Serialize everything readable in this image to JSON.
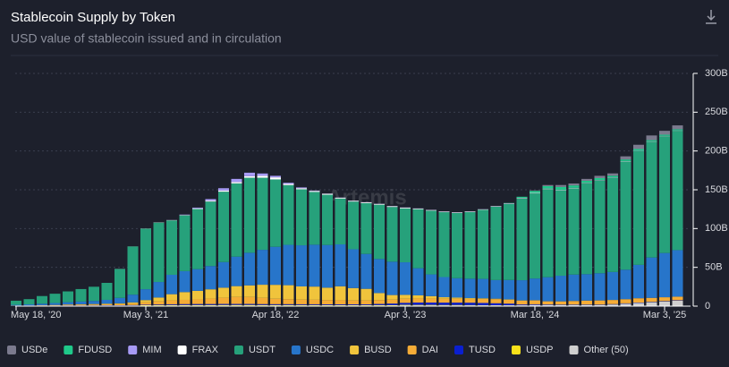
{
  "chart_data": {
    "type": "stacked-bar",
    "title": "Stablecoin Supply by Token",
    "subtitle": "USD value of stablecoin issued and in circulation",
    "watermark": "Artemis",
    "categories": [
      "May 18, '20",
      null,
      null,
      null,
      null,
      null,
      null,
      null,
      null,
      null,
      "May 3, '21",
      null,
      null,
      null,
      null,
      null,
      null,
      null,
      null,
      null,
      "Apr 18, '22",
      null,
      null,
      null,
      null,
      null,
      null,
      null,
      null,
      null,
      "Apr 3, '23",
      null,
      null,
      null,
      null,
      null,
      null,
      null,
      null,
      null,
      "Mar 18, '24",
      null,
      null,
      null,
      null,
      null,
      null,
      null,
      null,
      null,
      "Mar 3, '25",
      null
    ],
    "ylim": [
      0,
      300
    ],
    "yticks": [
      0,
      {
        "value": 50,
        "label": "50B"
      },
      {
        "value": 100,
        "label": "100B"
      },
      {
        "value": 150,
        "label": "150B"
      },
      {
        "value": 200,
        "label": "200B"
      },
      {
        "value": 250,
        "label": "250B"
      },
      {
        "value": 300,
        "label": "300B"
      }
    ],
    "grid": true,
    "legend": "bottom",
    "series": [
      {
        "name": "USDe",
        "color": "#7b7a8e",
        "values": [
          0,
          0,
          0,
          0,
          0,
          0,
          0,
          0,
          0,
          0,
          0,
          0,
          0,
          0,
          0,
          0,
          0,
          0,
          0,
          0,
          0,
          0,
          0,
          0,
          0,
          0,
          0,
          0,
          0,
          0,
          0,
          0,
          0,
          0,
          0,
          0,
          0,
          0,
          0,
          0,
          0.5,
          1.5,
          2.5,
          2.5,
          2.5,
          3,
          3,
          4,
          5.5,
          6,
          5,
          5
        ]
      },
      {
        "name": "FDUSD",
        "color": "#1fc98a",
        "values": [
          0,
          0,
          0,
          0,
          0,
          0,
          0,
          0,
          0,
          0,
          0,
          0,
          0,
          0,
          0,
          0,
          0,
          0,
          0,
          0,
          0,
          0,
          0,
          0,
          0,
          0,
          0,
          0,
          0,
          0,
          0,
          0,
          0,
          0,
          0,
          0,
          0,
          0,
          0.3,
          1.5,
          2.5,
          3,
          3.5,
          3,
          2.5,
          2.5,
          2,
          2,
          1.8,
          1.5,
          1.5,
          1.5
        ]
      },
      {
        "name": "MIM",
        "color": "#a79af5",
        "values": [
          0,
          0,
          0,
          0,
          0,
          0,
          0,
          0,
          0,
          0,
          0,
          0,
          0.1,
          0.5,
          1,
          2,
          3,
          4,
          4.5,
          3,
          2,
          1.5,
          1,
          0.5,
          0.2,
          0.2,
          0.2,
          0.2,
          0.2,
          0.2,
          0.2,
          0.2,
          0.2,
          0.2,
          0.2,
          0.2,
          0.2,
          0.2,
          0.2,
          0.2,
          0.2,
          0.2,
          0.2,
          0.2,
          0.2,
          0.2,
          0.2,
          0.2,
          0.2,
          0.2,
          0.2,
          0.2
        ]
      },
      {
        "name": "FRAX",
        "color": "#ffffff",
        "values": [
          0,
          0,
          0,
          0,
          0,
          0,
          0,
          0,
          0.1,
          0.1,
          0.2,
          0.3,
          0.4,
          0.5,
          0.8,
          1.2,
          1.5,
          1.8,
          2,
          2.5,
          2.7,
          1.5,
          1.4,
          1.3,
          1.2,
          1.1,
          1,
          1,
          1,
          1,
          1,
          0.8,
          0.8,
          0.7,
          0.7,
          0.7,
          0.6,
          0.6,
          0.6,
          0.6,
          0.6,
          0.6,
          0.5,
          0.5,
          0.4,
          0.4,
          0.4,
          0.4,
          0.3,
          0.3,
          0.3,
          0.3
        ]
      },
      {
        "name": "USDT",
        "color": "#26a17b",
        "values": [
          5.3,
          6.7,
          9.8,
          12,
          13.9,
          16.1,
          18.3,
          21.9,
          37.3,
          62.1,
          78,
          76.6,
          70.1,
          71.9,
          77.5,
          83.1,
          90.7,
          94.4,
          96.7,
          92.9,
          86.8,
          77,
          72.2,
          68,
          64.8,
          59.1,
          61.5,
          65.5,
          70,
          70.5,
          69.5,
          76.1,
          82.2,
          83.6,
          84.1,
          85.8,
          89.1,
          94.6,
          98.2,
          105.3,
          109.7,
          113.5,
          110.2,
          111.2,
          117.2,
          119.5,
          121.5,
          139.5,
          147,
          149.3,
          150.5,
          153.8
        ]
      },
      {
        "name": "USDC",
        "color": "#2775ca",
        "values": [
          1,
          1.5,
          2,
          2.5,
          3,
          3.5,
          4,
          5,
          7,
          10,
          14,
          20,
          25,
          27,
          28,
          30,
          33,
          38,
          42,
          45,
          49,
          52,
          53,
          54,
          55,
          54,
          50,
          45,
          44,
          43,
          42,
          35,
          28,
          26,
          25,
          25,
          25,
          24,
          25,
          26,
          28,
          31,
          33,
          34,
          34,
          35,
          36,
          38,
          43,
          52,
          57,
          60
        ]
      },
      {
        "name": "BUSD",
        "color": "#f0c43c",
        "values": [
          0.1,
          0.1,
          0.2,
          0.3,
          0.4,
          0.5,
          0.6,
          0.8,
          1,
          1.5,
          3,
          5,
          8,
          10,
          11,
          12,
          13,
          14,
          15,
          17,
          18,
          18,
          17,
          17,
          16,
          18,
          16,
          15,
          9,
          6,
          5,
          4,
          3,
          2,
          1.5,
          1,
          0.8,
          0.6,
          0.5,
          0.3,
          0.2,
          0.1,
          0.1,
          0.1,
          0.1,
          0.1,
          0.1,
          0.1,
          0.1,
          0.1,
          0.1,
          0.1
        ]
      },
      {
        "name": "DAI",
        "color": "#f5ac37",
        "values": [
          0.1,
          0.2,
          0.3,
          0.5,
          0.8,
          1,
          1.1,
          1.2,
          1.5,
          2,
          3,
          4,
          5,
          5.5,
          6,
          7,
          8,
          9,
          9,
          8,
          7,
          6.5,
          6,
          5.8,
          5.5,
          5.3,
          5,
          5,
          5,
          5,
          5.3,
          5.3,
          5.3,
          5,
          5,
          5,
          5.2,
          5.3,
          5,
          5,
          5,
          4,
          4,
          4.5,
          5,
          5.2,
          5.3,
          5.3,
          5.5,
          5,
          4.8,
          4.5
        ]
      },
      {
        "name": "TUSD",
        "color": "#0a1fd0",
        "values": [
          0.1,
          0.1,
          0.2,
          0.2,
          0.3,
          0.3,
          0.3,
          0.4,
          0.4,
          0.5,
          0.6,
          0.8,
          1,
          1.2,
          1.3,
          1.3,
          1.3,
          1.3,
          1.3,
          1.2,
          1.1,
          1.1,
          1,
          1,
          1,
          1,
          1,
          1,
          1.5,
          2,
          2.5,
          3,
          3,
          3,
          3,
          3,
          2.8,
          2.5,
          2,
          1,
          0.8,
          0.6,
          0.5,
          0.5,
          0.5,
          0.5,
          0.5,
          0.5,
          0.5,
          0.5,
          0.5,
          0.5
        ]
      },
      {
        "name": "USDP",
        "color": "#f8e11a",
        "values": [
          0.2,
          0.2,
          0.3,
          0.3,
          0.4,
          0.4,
          0.5,
          0.5,
          0.5,
          0.6,
          0.7,
          0.8,
          0.9,
          0.9,
          0.9,
          0.9,
          1,
          1,
          1,
          0.9,
          0.9,
          0.9,
          0.9,
          0.9,
          0.8,
          0.8,
          0.8,
          0.8,
          0.8,
          0.8,
          0.7,
          0.6,
          0.6,
          0.5,
          0.5,
          0.4,
          0.3,
          0.2,
          0.2,
          0.1,
          0.1,
          0.1,
          0.1,
          0.1,
          0.1,
          0.1,
          0.1,
          0.1,
          0.1,
          0.1,
          0.1,
          0.1
        ]
      },
      {
        "name": "Other (50)",
        "color": "#cfcfcf",
        "values": [
          0.2,
          0.2,
          0.2,
          0.2,
          0.2,
          0.2,
          0.2,
          0.2,
          0.2,
          0.2,
          0.5,
          0.5,
          0.5,
          0.5,
          0.5,
          0.5,
          0.5,
          0.5,
          0.5,
          0.5,
          0.5,
          0.5,
          0.5,
          0.5,
          0.5,
          0.5,
          0.5,
          0.5,
          0.5,
          0.5,
          1,
          1,
          1,
          1,
          1,
          1,
          1,
          1,
          1,
          1,
          1.5,
          1.5,
          1.5,
          1.5,
          1.5,
          1.5,
          2,
          3,
          4,
          5,
          6,
          7
        ]
      }
    ]
  }
}
